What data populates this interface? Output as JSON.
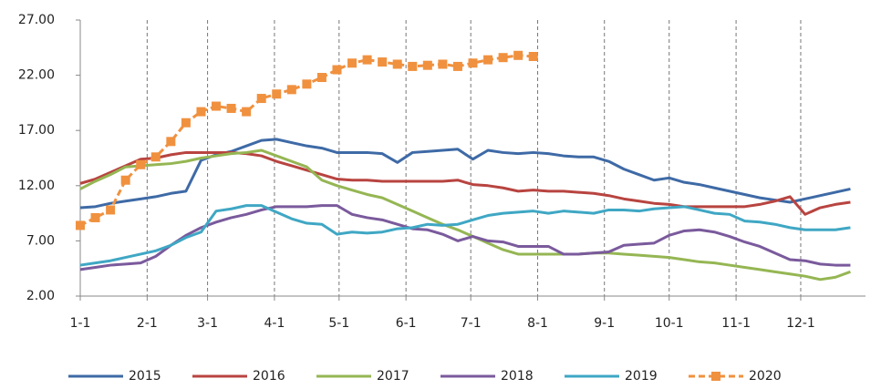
{
  "chart_data": {
    "type": "line",
    "x": [
      0,
      1,
      2,
      3,
      4,
      5,
      6,
      7,
      8,
      9,
      10,
      11,
      12,
      13,
      14,
      15,
      16,
      17,
      18,
      19,
      20,
      21,
      22,
      23,
      24,
      25,
      26,
      27,
      28,
      29,
      30,
      31,
      32,
      33,
      34,
      35,
      36,
      37,
      38,
      39,
      40,
      41,
      42,
      43,
      44,
      45,
      46,
      47,
      48,
      49,
      50,
      51
    ],
    "xlim": [
      0,
      52
    ],
    "xticks": [
      {
        "value": 0,
        "label": "1-1"
      },
      {
        "value": 4.43,
        "label": "2-1"
      },
      {
        "value": 8.43,
        "label": "3-1"
      },
      {
        "value": 12.86,
        "label": "4-1"
      },
      {
        "value": 17.14,
        "label": "5-1"
      },
      {
        "value": 21.57,
        "label": "6-1"
      },
      {
        "value": 25.86,
        "label": "7-1"
      },
      {
        "value": 30.29,
        "label": "8-1"
      },
      {
        "value": 34.71,
        "label": "9-1"
      },
      {
        "value": 39,
        "label": "10-1"
      },
      {
        "value": 43.43,
        "label": "11-1"
      },
      {
        "value": 47.71,
        "label": "12-1"
      }
    ],
    "ylim": [
      2,
      27
    ],
    "yticks": [
      {
        "value": 2,
        "label": "2.00"
      },
      {
        "value": 7,
        "label": "7.00"
      },
      {
        "value": 12,
        "label": "12.00"
      },
      {
        "value": 17,
        "label": "17.00"
      },
      {
        "value": 22,
        "label": "22.00"
      },
      {
        "value": 27,
        "label": "27.00"
      }
    ],
    "grid": true,
    "legend": "bottom",
    "series": [
      {
        "name": "2015",
        "color": "#3e6aa6",
        "values": [
          10.0,
          10.1,
          10.4,
          10.6,
          10.8,
          11.0,
          11.3,
          11.5,
          14.3,
          14.8,
          15.1,
          15.6,
          16.1,
          16.2,
          15.9,
          15.6,
          15.4,
          15.0,
          15.0,
          15.0,
          14.9,
          14.1,
          15.0,
          15.1,
          15.2,
          15.3,
          14.4,
          15.2,
          15.0,
          14.9,
          15.0,
          14.9,
          14.7,
          14.6,
          14.6,
          14.2,
          13.5,
          13.0,
          12.5,
          12.7,
          12.3,
          12.1,
          11.8,
          11.5,
          11.2,
          10.9,
          10.7,
          10.5,
          10.8,
          11.1,
          11.4,
          11.7
        ]
      },
      {
        "name": "2016",
        "color": "#b84440",
        "values": [
          12.2,
          12.6,
          13.2,
          13.8,
          14.4,
          14.5,
          14.8,
          15.0,
          15.0,
          15.0,
          15.0,
          14.9,
          14.7,
          14.2,
          13.8,
          13.4,
          13.0,
          12.6,
          12.5,
          12.5,
          12.4,
          12.4,
          12.4,
          12.4,
          12.4,
          12.5,
          12.1,
          12.0,
          11.8,
          11.5,
          11.6,
          11.5,
          11.5,
          11.4,
          11.3,
          11.1,
          10.8,
          10.6,
          10.4,
          10.3,
          10.1,
          10.1,
          10.1,
          10.1,
          10.1,
          10.3,
          10.6,
          11.0,
          9.4,
          10.0,
          10.3,
          10.5
        ]
      },
      {
        "name": "2017",
        "color": "#95b653",
        "values": [
          11.7,
          12.4,
          13.0,
          13.7,
          13.8,
          13.9,
          14.0,
          14.2,
          14.5,
          14.7,
          14.9,
          15.0,
          15.2,
          14.7,
          14.2,
          13.7,
          12.5,
          12.0,
          11.6,
          11.2,
          10.9,
          10.3,
          9.7,
          9.1,
          8.5,
          8.0,
          7.4,
          6.8,
          6.2,
          5.8,
          5.8,
          5.8,
          5.8,
          5.8,
          5.9,
          5.9,
          5.8,
          5.7,
          5.6,
          5.5,
          5.3,
          5.1,
          5.0,
          4.8,
          4.6,
          4.4,
          4.2,
          4.0,
          3.8,
          3.5,
          3.7,
          4.2
        ]
      },
      {
        "name": "2018",
        "color": "#7a5a9c",
        "values": [
          4.4,
          4.6,
          4.8,
          4.9,
          5.0,
          5.6,
          6.6,
          7.5,
          8.2,
          8.7,
          9.1,
          9.4,
          9.8,
          10.1,
          10.1,
          10.1,
          10.2,
          10.2,
          9.4,
          9.1,
          8.9,
          8.5,
          8.1,
          8.0,
          7.6,
          7.0,
          7.4,
          7.0,
          6.9,
          6.5,
          6.5,
          6.5,
          5.8,
          5.8,
          5.9,
          6.0,
          6.6,
          6.7,
          6.8,
          7.5,
          7.9,
          8.0,
          7.8,
          7.4,
          6.9,
          6.5,
          5.9,
          5.3,
          5.2,
          4.9,
          4.8,
          4.8
        ]
      },
      {
        "name": "2019",
        "color": "#3fa7c4",
        "values": [
          4.8,
          5.0,
          5.2,
          5.5,
          5.8,
          6.1,
          6.6,
          7.3,
          7.8,
          9.7,
          9.9,
          10.2,
          10.2,
          9.6,
          9.0,
          8.6,
          8.5,
          7.6,
          7.8,
          7.7,
          7.8,
          8.1,
          8.2,
          8.5,
          8.4,
          8.5,
          8.9,
          9.3,
          9.5,
          9.6,
          9.7,
          9.5,
          9.7,
          9.6,
          9.5,
          9.8,
          9.8,
          9.7,
          9.9,
          10.0,
          10.1,
          9.8,
          9.5,
          9.4,
          8.8,
          8.7,
          8.5,
          8.2,
          8.0,
          8.0,
          8.0,
          8.2
        ]
      },
      {
        "name": "2020",
        "color": "#f0913f",
        "dashed": true,
        "marker": "square",
        "values": [
          8.4,
          9.1,
          9.8,
          12.5,
          13.9,
          14.6,
          16.0,
          17.7,
          18.7,
          19.2,
          19.0,
          18.7,
          19.9,
          20.3,
          20.7,
          21.2,
          21.8,
          22.5,
          23.1,
          23.4,
          23.2,
          23.0,
          22.8,
          22.9,
          23.0,
          22.8,
          23.1,
          23.4,
          23.6,
          23.8,
          23.7,
          null,
          null,
          null,
          null,
          null,
          null,
          null,
          null,
          null,
          null,
          null,
          null,
          null,
          null,
          null,
          null,
          null,
          null,
          null,
          null,
          null
        ]
      }
    ]
  }
}
